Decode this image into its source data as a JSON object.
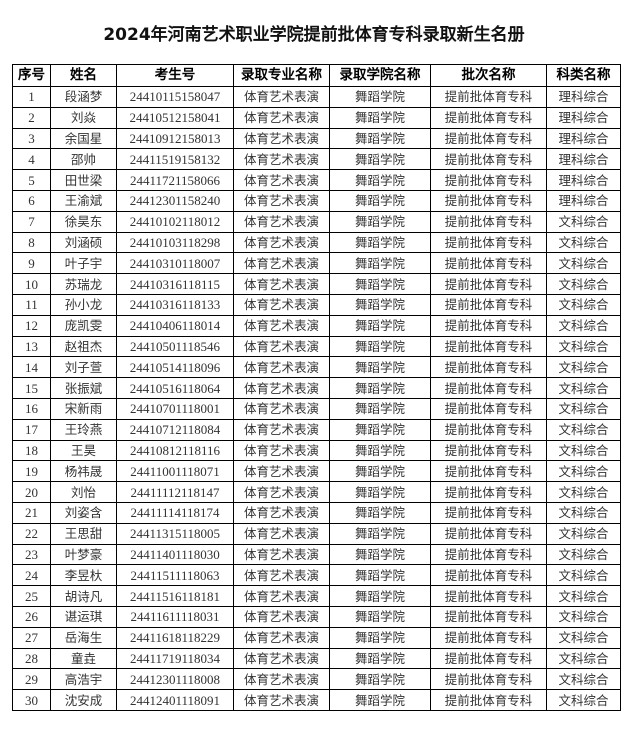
{
  "title": "2024年河南艺术职业学院提前批体育专科录取新生名册",
  "columns": [
    "序号",
    "姓名",
    "考生号",
    "录取专业名称",
    "录取学院名称",
    "批次名称",
    "科类名称"
  ],
  "rows": [
    [
      "1",
      "段涵梦",
      "24410115158047",
      "体育艺术表演",
      "舞蹈学院",
      "提前批体育专科",
      "理科综合"
    ],
    [
      "2",
      "刘焱",
      "24410512158041",
      "体育艺术表演",
      "舞蹈学院",
      "提前批体育专科",
      "理科综合"
    ],
    [
      "3",
      "余国星",
      "24410912158013",
      "体育艺术表演",
      "舞蹈学院",
      "提前批体育专科",
      "理科综合"
    ],
    [
      "4",
      "邵帅",
      "24411519158132",
      "体育艺术表演",
      "舞蹈学院",
      "提前批体育专科",
      "理科综合"
    ],
    [
      "5",
      "田世梁",
      "24411721158066",
      "体育艺术表演",
      "舞蹈学院",
      "提前批体育专科",
      "理科综合"
    ],
    [
      "6",
      "王渝斌",
      "24412301158240",
      "体育艺术表演",
      "舞蹈学院",
      "提前批体育专科",
      "理科综合"
    ],
    [
      "7",
      "徐昊东",
      "24410102118012",
      "体育艺术表演",
      "舞蹈学院",
      "提前批体育专科",
      "文科综合"
    ],
    [
      "8",
      "刘涵硕",
      "24410103118298",
      "体育艺术表演",
      "舞蹈学院",
      "提前批体育专科",
      "文科综合"
    ],
    [
      "9",
      "叶子宇",
      "24410310118007",
      "体育艺术表演",
      "舞蹈学院",
      "提前批体育专科",
      "文科综合"
    ],
    [
      "10",
      "苏瑞龙",
      "24410316118115",
      "体育艺术表演",
      "舞蹈学院",
      "提前批体育专科",
      "文科综合"
    ],
    [
      "11",
      "孙小龙",
      "24410316118133",
      "体育艺术表演",
      "舞蹈学院",
      "提前批体育专科",
      "文科综合"
    ],
    [
      "12",
      "庞凯雯",
      "24410406118014",
      "体育艺术表演",
      "舞蹈学院",
      "提前批体育专科",
      "文科综合"
    ],
    [
      "13",
      "赵祖杰",
      "24410501118546",
      "体育艺术表演",
      "舞蹈学院",
      "提前批体育专科",
      "文科综合"
    ],
    [
      "14",
      "刘子萱",
      "24410514118096",
      "体育艺术表演",
      "舞蹈学院",
      "提前批体育专科",
      "文科综合"
    ],
    [
      "15",
      "张振斌",
      "24410516118064",
      "体育艺术表演",
      "舞蹈学院",
      "提前批体育专科",
      "文科综合"
    ],
    [
      "16",
      "宋新雨",
      "24410701118001",
      "体育艺术表演",
      "舞蹈学院",
      "提前批体育专科",
      "文科综合"
    ],
    [
      "17",
      "王玲燕",
      "24410712118084",
      "体育艺术表演",
      "舞蹈学院",
      "提前批体育专科",
      "文科综合"
    ],
    [
      "18",
      "王昊",
      "24410812118116",
      "体育艺术表演",
      "舞蹈学院",
      "提前批体育专科",
      "文科综合"
    ],
    [
      "19",
      "杨祎晟",
      "24411001118071",
      "体育艺术表演",
      "舞蹈学院",
      "提前批体育专科",
      "文科综合"
    ],
    [
      "20",
      "刘怡",
      "24411112118147",
      "体育艺术表演",
      "舞蹈学院",
      "提前批体育专科",
      "文科综合"
    ],
    [
      "21",
      "刘姿含",
      "24411114118174",
      "体育艺术表演",
      "舞蹈学院",
      "提前批体育专科",
      "文科综合"
    ],
    [
      "22",
      "王思甜",
      "24411315118005",
      "体育艺术表演",
      "舞蹈学院",
      "提前批体育专科",
      "文科综合"
    ],
    [
      "23",
      "叶梦豪",
      "24411401118030",
      "体育艺术表演",
      "舞蹈学院",
      "提前批体育专科",
      "文科综合"
    ],
    [
      "24",
      "李昱杕",
      "24411511118063",
      "体育艺术表演",
      "舞蹈学院",
      "提前批体育专科",
      "文科综合"
    ],
    [
      "25",
      "胡诗凡",
      "24411516118181",
      "体育艺术表演",
      "舞蹈学院",
      "提前批体育专科",
      "文科综合"
    ],
    [
      "26",
      "谌运琪",
      "24411611118031",
      "体育艺术表演",
      "舞蹈学院",
      "提前批体育专科",
      "文科综合"
    ],
    [
      "27",
      "岳海生",
      "24411618118229",
      "体育艺术表演",
      "舞蹈学院",
      "提前批体育专科",
      "文科综合"
    ],
    [
      "28",
      "童垚",
      "24411719118034",
      "体育艺术表演",
      "舞蹈学院",
      "提前批体育专科",
      "文科综合"
    ],
    [
      "29",
      "高浩宇",
      "24412301118008",
      "体育艺术表演",
      "舞蹈学院",
      "提前批体育专科",
      "文科综合"
    ],
    [
      "30",
      "沈安成",
      "24412401118091",
      "体育艺术表演",
      "舞蹈学院",
      "提前批体育专科",
      "文科综合"
    ]
  ]
}
